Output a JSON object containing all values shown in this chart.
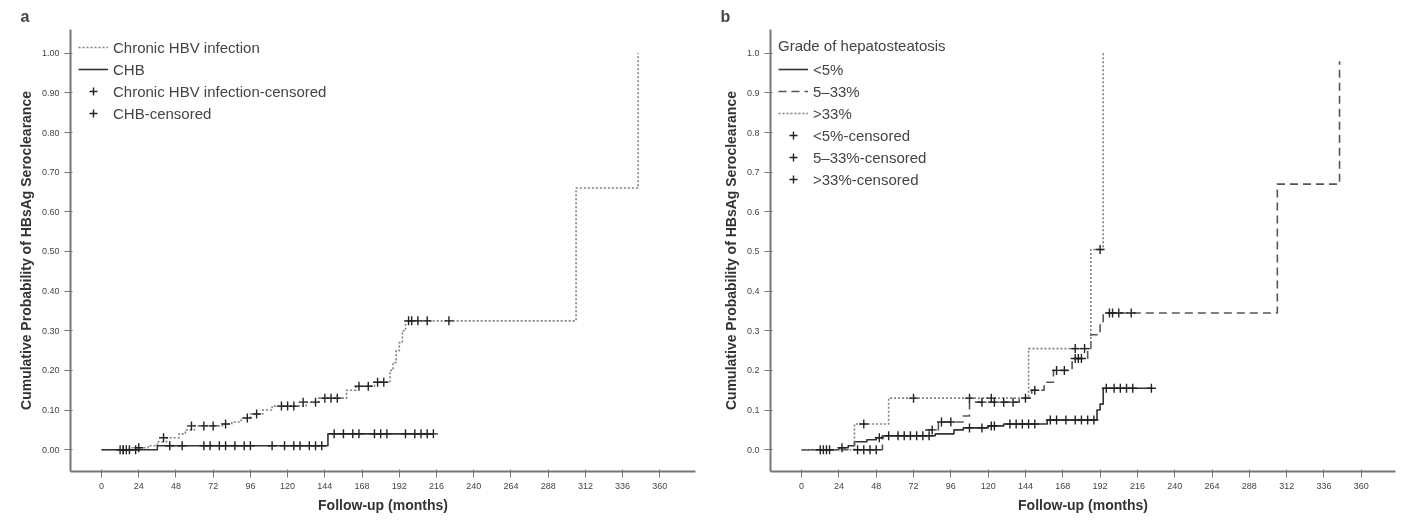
{
  "chart_data": [
    {
      "type": "step",
      "annotations": [
        "a"
      ],
      "xlabel": "Follow-up (months)",
      "ylabel": "Cumulative Probability of HBsAg Seroclearance",
      "xlim": [
        -20,
        383
      ],
      "ylim": [
        -0.055,
        1.06
      ],
      "xticks": [
        0,
        24,
        48,
        72,
        96,
        120,
        144,
        168,
        192,
        216,
        240,
        264,
        288,
        312,
        336,
        360
      ],
      "yticks": [
        {
          "value": 0,
          "label": "0.00"
        },
        {
          "value": 0.1,
          "label": "0.10"
        },
        {
          "value": 0.2,
          "label": "0.20"
        },
        {
          "value": 0.3,
          "label": "0.30"
        },
        {
          "value": 0.4,
          "label": "0.40"
        },
        {
          "value": 0.5,
          "label": "0.50"
        },
        {
          "value": 0.6,
          "label": "0.60"
        },
        {
          "value": 0.7,
          "label": "0.70"
        },
        {
          "value": 0.8,
          "label": "0.80"
        },
        {
          "value": 0.9,
          "label": "0.90"
        },
        {
          "value": 1.0,
          "label": "1.00"
        }
      ],
      "grid": false,
      "legend": "top left",
      "series": [
        {
          "name": "Chronic HBV infection",
          "line_style": "dotted",
          "color": "#808080",
          "x": [
            0,
            18,
            30,
            36,
            42,
            50,
            54,
            60,
            78,
            84,
            90,
            96,
            104,
            110,
            132,
            140,
            158,
            164,
            176,
            186,
            188,
            190,
            192,
            194,
            196,
            306,
            346
          ],
          "values": [
            0,
            0.005,
            0.01,
            0.02,
            0.03,
            0.04,
            0.05,
            0.06,
            0.065,
            0.07,
            0.08,
            0.09,
            0.1,
            0.11,
            0.12,
            0.13,
            0.15,
            0.16,
            0.17,
            0.2,
            0.22,
            0.25,
            0.27,
            0.3,
            0.325,
            0.66,
            1.0
          ]
        },
        {
          "name": "CHB",
          "line_style": "solid",
          "color": "#333333",
          "x": [
            0,
            36,
            146,
            214
          ],
          "values": [
            0,
            0.01,
            0.04,
            0.04
          ]
        },
        {
          "name": "Chronic HBV infection-censored",
          "type": "scatter",
          "marker": "cross",
          "color": "#222222",
          "x": [
            12,
            14,
            16,
            24,
            40,
            58,
            66,
            72,
            80,
            94,
            100,
            116,
            120,
            124,
            130,
            138,
            144,
            148,
            152,
            166,
            172,
            178,
            182,
            198,
            200,
            204,
            210,
            224
          ],
          "values": [
            0,
            0,
            0,
            0.005,
            0.03,
            0.06,
            0.06,
            0.06,
            0.065,
            0.08,
            0.09,
            0.11,
            0.11,
            0.11,
            0.12,
            0.12,
            0.13,
            0.13,
            0.13,
            0.16,
            0.16,
            0.17,
            0.17,
            0.325,
            0.325,
            0.325,
            0.325,
            0.325
          ]
        },
        {
          "name": "CHB-censored",
          "type": "scatter",
          "marker": "cross",
          "color": "#222222",
          "x": [
            14,
            18,
            22,
            44,
            52,
            66,
            70,
            76,
            80,
            86,
            92,
            96,
            110,
            118,
            124,
            128,
            134,
            138,
            142,
            150,
            156,
            162,
            166,
            176,
            180,
            184,
            196,
            202,
            206,
            210,
            214
          ],
          "values": [
            0,
            0,
            0,
            0.01,
            0.01,
            0.01,
            0.01,
            0.01,
            0.01,
            0.01,
            0.01,
            0.01,
            0.01,
            0.01,
            0.01,
            0.01,
            0.01,
            0.01,
            0.01,
            0.04,
            0.04,
            0.04,
            0.04,
            0.04,
            0.04,
            0.04,
            0.04,
            0.04,
            0.04,
            0.04,
            0.04
          ]
        }
      ]
    },
    {
      "type": "step",
      "annotations": [
        "b"
      ],
      "xlabel": "Follow-up (months)",
      "ylabel": "Cumulative Probability of HBsAg Seroclearance",
      "legend_title": "Grade of hepatosteatosis",
      "xlim": [
        -20,
        382
      ],
      "ylim": [
        -0.055,
        1.06
      ],
      "xticks": [
        0,
        24,
        48,
        72,
        96,
        120,
        144,
        168,
        192,
        216,
        240,
        264,
        288,
        312,
        336,
        360
      ],
      "yticks": [
        {
          "value": 0,
          "label": "0.0"
        },
        {
          "value": 0.1,
          "label": "0.1"
        },
        {
          "value": 0.2,
          "label": "0.2"
        },
        {
          "value": 0.3,
          "label": "0.3"
        },
        {
          "value": 0.4,
          "label": "0.4"
        },
        {
          "value": 0.5,
          "label": "0.5"
        },
        {
          "value": 0.6,
          "label": "0.6"
        },
        {
          "value": 0.7,
          "label": "0.7"
        },
        {
          "value": 0.8,
          "label": "0.8"
        },
        {
          "value": 0.9,
          "label": "0.9"
        },
        {
          "value": 1.0,
          "label": "1.0"
        }
      ],
      "grid": false,
      "legend": "top left",
      "series": [
        {
          "name": "<5%",
          "line_style": "solid",
          "color": "#333333",
          "x": [
            0,
            24,
            30,
            34,
            42,
            48,
            52,
            86,
            98,
            104,
            120,
            130,
            158,
            190,
            192,
            194,
            225
          ],
          "values": [
            0,
            0.005,
            0.01,
            0.02,
            0.025,
            0.03,
            0.035,
            0.04,
            0.05,
            0.055,
            0.06,
            0.065,
            0.075,
            0.1,
            0.115,
            0.155,
            0.155
          ]
        },
        {
          "name": "5–33%",
          "line_style": "dashed",
          "color": "#555555",
          "x": [
            0,
            52,
            80,
            88,
            104,
            108,
            140,
            148,
            156,
            162,
            174,
            184,
            186,
            192,
            194,
            306,
            346
          ],
          "values": [
            0,
            0.035,
            0.05,
            0.07,
            0.085,
            0.12,
            0.13,
            0.15,
            0.17,
            0.2,
            0.23,
            0.25,
            0.29,
            0.32,
            0.345,
            0.67,
            0.98
          ]
        },
        {
          "name": ">33%",
          "line_style": "dotted",
          "color": "#808080",
          "x": [
            0,
            34,
            56,
            146,
            186,
            194
          ],
          "values": [
            0,
            0.065,
            0.13,
            0.255,
            0.505,
            1.0
          ]
        },
        {
          "name": "<5%-censored",
          "type": "scatter",
          "marker": "cross",
          "color": "#222222",
          "x": [
            12,
            14,
            16,
            18,
            26,
            50,
            56,
            62,
            66,
            70,
            74,
            78,
            82,
            108,
            116,
            122,
            124,
            134,
            138,
            142,
            146,
            150,
            160,
            164,
            170,
            176,
            180,
            184,
            188,
            196,
            201,
            205,
            209,
            213,
            225
          ],
          "values": [
            0,
            0,
            0,
            0,
            0.005,
            0.03,
            0.035,
            0.035,
            0.035,
            0.035,
            0.035,
            0.035,
            0.035,
            0.055,
            0.055,
            0.06,
            0.06,
            0.065,
            0.065,
            0.065,
            0.065,
            0.065,
            0.075,
            0.075,
            0.075,
            0.075,
            0.075,
            0.075,
            0.075,
            0.155,
            0.155,
            0.155,
            0.155,
            0.155,
            0.155
          ]
        },
        {
          "name": "5–33%-censored",
          "type": "scatter",
          "marker": "cross",
          "color": "#222222",
          "x": [
            36,
            40,
            44,
            48,
            84,
            90,
            96,
            116,
            124,
            130,
            136,
            144,
            150,
            164,
            169,
            176,
            178,
            180,
            198,
            200,
            204,
            212
          ],
          "values": [
            0,
            0,
            0,
            0,
            0.05,
            0.07,
            0.07,
            0.12,
            0.12,
            0.12,
            0.12,
            0.13,
            0.15,
            0.2,
            0.2,
            0.23,
            0.23,
            0.23,
            0.345,
            0.345,
            0.345,
            0.345
          ]
        },
        {
          "name": ">33%-censored",
          "type": "scatter",
          "marker": "cross",
          "color": "#222222",
          "x": [
            40,
            72,
            108,
            122,
            176,
            182,
            192
          ],
          "values": [
            0.065,
            0.13,
            0.13,
            0.13,
            0.255,
            0.255,
            0.505
          ]
        }
      ]
    }
  ]
}
